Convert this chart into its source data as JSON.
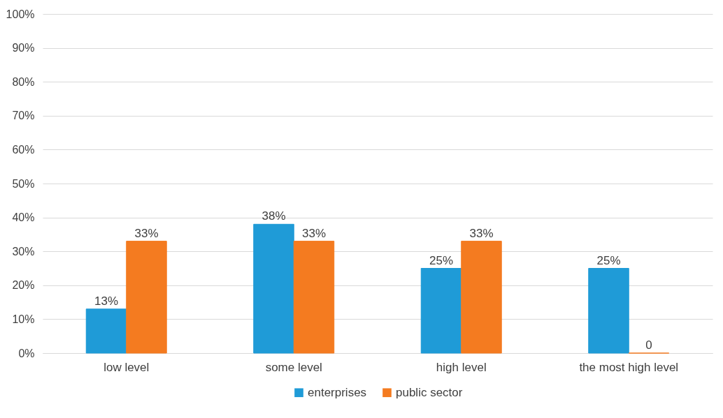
{
  "chart_data": {
    "type": "bar",
    "categories": [
      "low level",
      "some level",
      "high level",
      "the most high level"
    ],
    "series": [
      {
        "name": "enterprises",
        "color": "#1f9bd7",
        "values": [
          13,
          38,
          25,
          25
        ],
        "value_labels": [
          "13%",
          "38%",
          "25%",
          "25%"
        ]
      },
      {
        "name": "public sector",
        "color": "#f47b20",
        "values": [
          33,
          33,
          33,
          0
        ],
        "value_labels": [
          "33%",
          "33%",
          "33%",
          "0"
        ]
      }
    ],
    "ylim": [
      0,
      100
    ],
    "yticks": [
      {
        "value": 0,
        "label": "0%"
      },
      {
        "value": 10,
        "label": "10%"
      },
      {
        "value": 20,
        "label": "20%"
      },
      {
        "value": 30,
        "label": "30%"
      },
      {
        "value": 40,
        "label": "40%"
      },
      {
        "value": 50,
        "label": "50%"
      },
      {
        "value": 60,
        "label": "60%"
      },
      {
        "value": 70,
        "label": "70%"
      },
      {
        "value": 80,
        "label": "80%"
      },
      {
        "value": 90,
        "label": "90%"
      },
      {
        "value": 100,
        "label": "100%"
      }
    ],
    "grid": "y",
    "legend": "bottom"
  }
}
